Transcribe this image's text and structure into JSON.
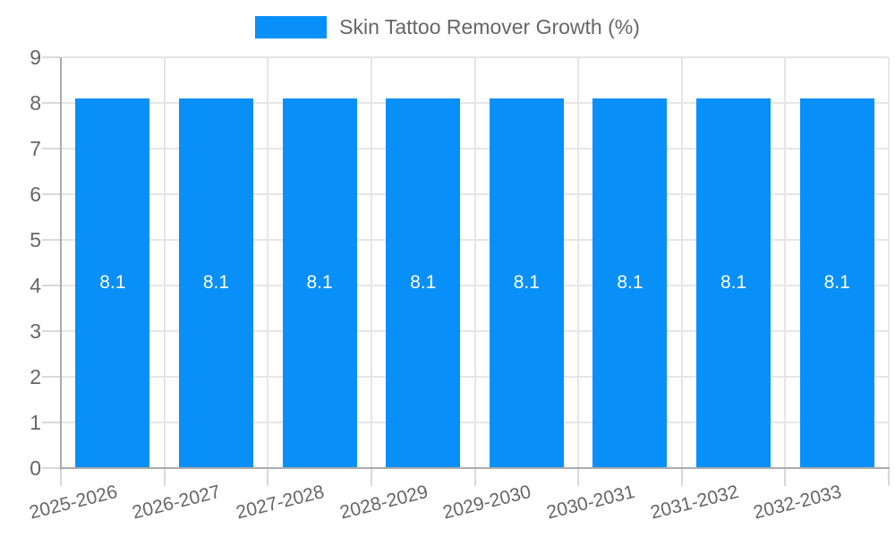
{
  "chart_data": {
    "type": "bar",
    "title": "Skin Tattoo Remover Growth (%)",
    "categories": [
      "2025-2026",
      "2026-2027",
      "2027-2028",
      "2028-2029",
      "2029-2030",
      "2030-2031",
      "2031-2032",
      "2032-2033"
    ],
    "series": [
      {
        "name": "Skin Tattoo Remover Growth (%)",
        "values": [
          8.1,
          8.1,
          8.1,
          8.1,
          8.1,
          8.1,
          8.1,
          8.1
        ]
      }
    ],
    "bar_value_labels": [
      "8.1",
      "8.1",
      "8.1",
      "8.1",
      "8.1",
      "8.1",
      "8.1",
      "8.1"
    ],
    "xlabel": "",
    "ylabel": "",
    "ylim": [
      0,
      9
    ],
    "ytick_values": [
      0,
      1,
      2,
      3,
      4,
      5,
      6,
      7,
      8,
      9
    ],
    "grid": true,
    "legend_position": "top",
    "colors": {
      "bar": "#0890f8",
      "bar_label": "#ffffff",
      "axis_text": "#666666",
      "gridline": "#e6e6e6",
      "tick": "#d9d9d9",
      "axis_line": "#ababab",
      "background": "#ffffff"
    }
  }
}
